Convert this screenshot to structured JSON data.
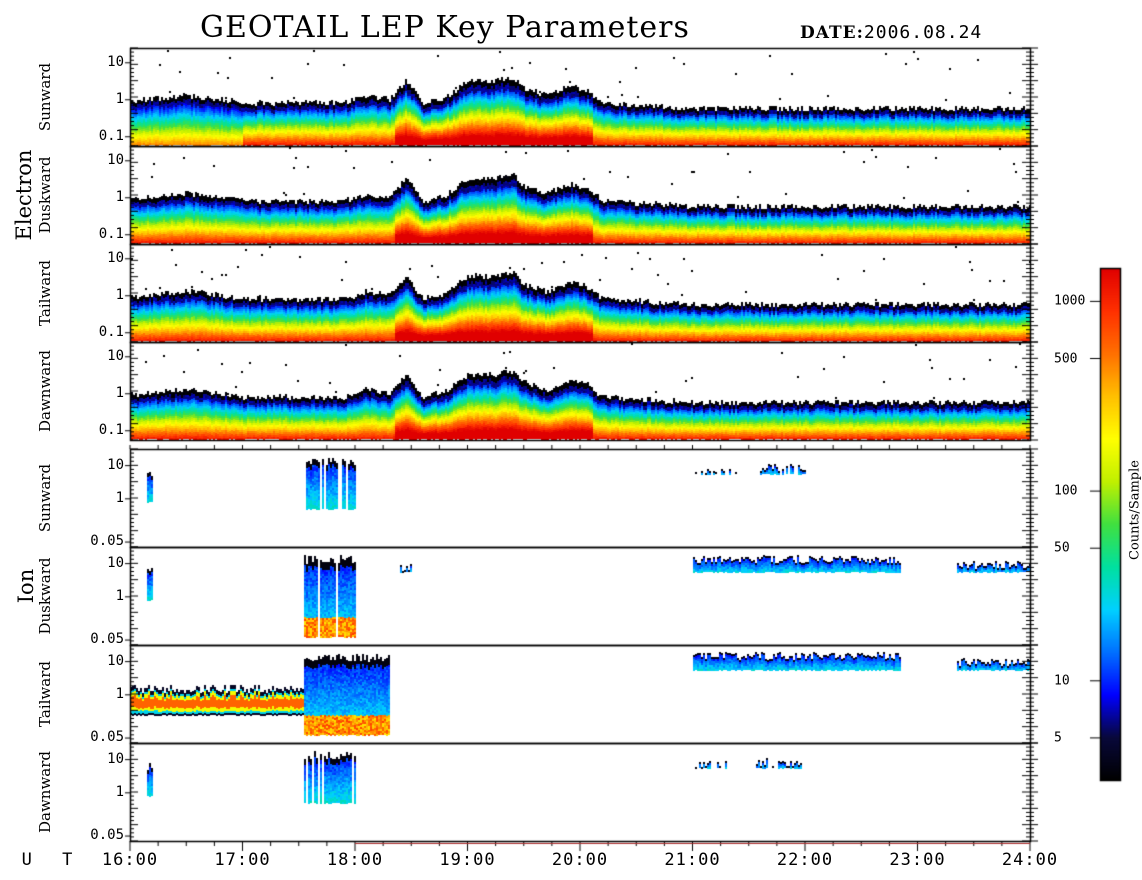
{
  "title": "GEOTAIL LEP Key Parameters",
  "date_label": "DATE:",
  "date_value": "2006.08.24",
  "chart_data": {
    "type": "heatmap",
    "x_axis_label": "U T",
    "x_ticks": [
      "16:00",
      "17:00",
      "18:00",
      "19:00",
      "20:00",
      "21:00",
      "22:00",
      "23:00",
      "24:00"
    ],
    "x_range_hours": [
      16,
      24
    ],
    "groups": [
      {
        "species": "Electron",
        "panels": [
          "Sunward",
          "Duskward",
          "Tailward",
          "Dawnward"
        ],
        "y_ticks": [
          "10",
          "1",
          "0.1"
        ],
        "y_scale": "log"
      },
      {
        "species": "Ion",
        "panels": [
          "Sunward",
          "Duskward",
          "Tailward",
          "Dawnward"
        ],
        "y_ticks": [
          "10",
          "1",
          "0.05"
        ],
        "y_scale": "log"
      }
    ],
    "colorbar": {
      "label": "Counts/Sample",
      "scale": "log",
      "range": [
        3,
        1500
      ],
      "ticks": [
        "1000",
        "500",
        "100",
        "50",
        "10",
        "5"
      ],
      "tick_values": [
        1000,
        500,
        100,
        50,
        10,
        5
      ],
      "colors": [
        "#000000",
        "#08083a",
        "#0000ff",
        "#0070ff",
        "#00d0ff",
        "#00e0a0",
        "#40e040",
        "#c0f000",
        "#ffff00",
        "#ffc000",
        "#ff7000",
        "#ff3000",
        "#e00000"
      ]
    },
    "electron_envelope": {
      "times_h": [
        16.0,
        16.5,
        16.8,
        17.0,
        17.5,
        17.9,
        18.1,
        18.3,
        18.45,
        18.6,
        18.8,
        19.0,
        19.2,
        19.4,
        19.5,
        19.7,
        19.9,
        20.05,
        20.2,
        21.0,
        22.0,
        23.0,
        24.0
      ],
      "upper_log10": [
        -0.05,
        0.1,
        0.0,
        -0.1,
        -0.1,
        -0.1,
        0.1,
        0.0,
        0.5,
        -0.1,
        0.05,
        0.5,
        0.5,
        0.6,
        0.3,
        0.1,
        0.35,
        0.25,
        -0.1,
        -0.25,
        -0.25,
        -0.25,
        -0.25
      ]
    },
    "ion_events": [
      {
        "panel": "Sunward",
        "t_start": 16.15,
        "t_end": 16.2,
        "e_lo_log10": -0.1,
        "e_hi_log10": 0.9
      },
      {
        "panel": "Sunward",
        "t_start": 17.55,
        "t_end": 18.0,
        "e_lo_log10": -0.3,
        "e_hi_log10": 1.25
      },
      {
        "panel": "Sunward",
        "t_start": 21.0,
        "t_end": 21.4,
        "e_lo_log10": 0.75,
        "e_hi_log10": 0.95
      },
      {
        "panel": "Sunward",
        "t_start": 21.6,
        "t_end": 22.0,
        "e_lo_log10": 0.75,
        "e_hi_log10": 1.05
      },
      {
        "panel": "Duskward",
        "t_start": 16.15,
        "t_end": 16.2,
        "e_lo_log10": -0.1,
        "e_hi_log10": 0.9
      },
      {
        "panel": "Duskward",
        "t_start": 17.55,
        "t_end": 18.0,
        "e_lo_log10": -1.2,
        "e_hi_log10": 1.25
      },
      {
        "panel": "Duskward",
        "t_start": 18.4,
        "t_end": 18.5,
        "e_lo_log10": 0.75,
        "e_hi_log10": 1.0
      },
      {
        "panel": "Duskward",
        "t_start": 21.0,
        "t_end": 22.85,
        "e_lo_log10": 0.75,
        "e_hi_log10": 1.25
      },
      {
        "panel": "Duskward",
        "t_start": 23.35,
        "t_end": 24.0,
        "e_lo_log10": 0.75,
        "e_hi_log10": 1.1
      },
      {
        "panel": "Tailward",
        "t_start": 16.0,
        "t_end": 17.55,
        "e_lo_log10": -0.6,
        "e_hi_log10": 0.3
      },
      {
        "panel": "Tailward",
        "t_start": 17.55,
        "t_end": 18.3,
        "e_lo_log10": -1.2,
        "e_hi_log10": 1.25
      },
      {
        "panel": "Tailward",
        "t_start": 21.0,
        "t_end": 22.85,
        "e_lo_log10": 0.75,
        "e_hi_log10": 1.3
      },
      {
        "panel": "Tailward",
        "t_start": 23.35,
        "t_end": 24.0,
        "e_lo_log10": 0.75,
        "e_hi_log10": 1.1
      },
      {
        "panel": "Dawnward",
        "t_start": 16.15,
        "t_end": 16.2,
        "e_lo_log10": -0.1,
        "e_hi_log10": 0.9
      },
      {
        "panel": "Dawnward",
        "t_start": 17.55,
        "t_end": 18.0,
        "e_lo_log10": -0.3,
        "e_hi_log10": 1.25
      },
      {
        "panel": "Dawnward",
        "t_start": 21.0,
        "t_end": 21.3,
        "e_lo_log10": 0.75,
        "e_hi_log10": 0.95
      },
      {
        "panel": "Dawnward",
        "t_start": 21.55,
        "t_end": 22.0,
        "e_lo_log10": 0.75,
        "e_hi_log10": 1.05
      }
    ]
  }
}
